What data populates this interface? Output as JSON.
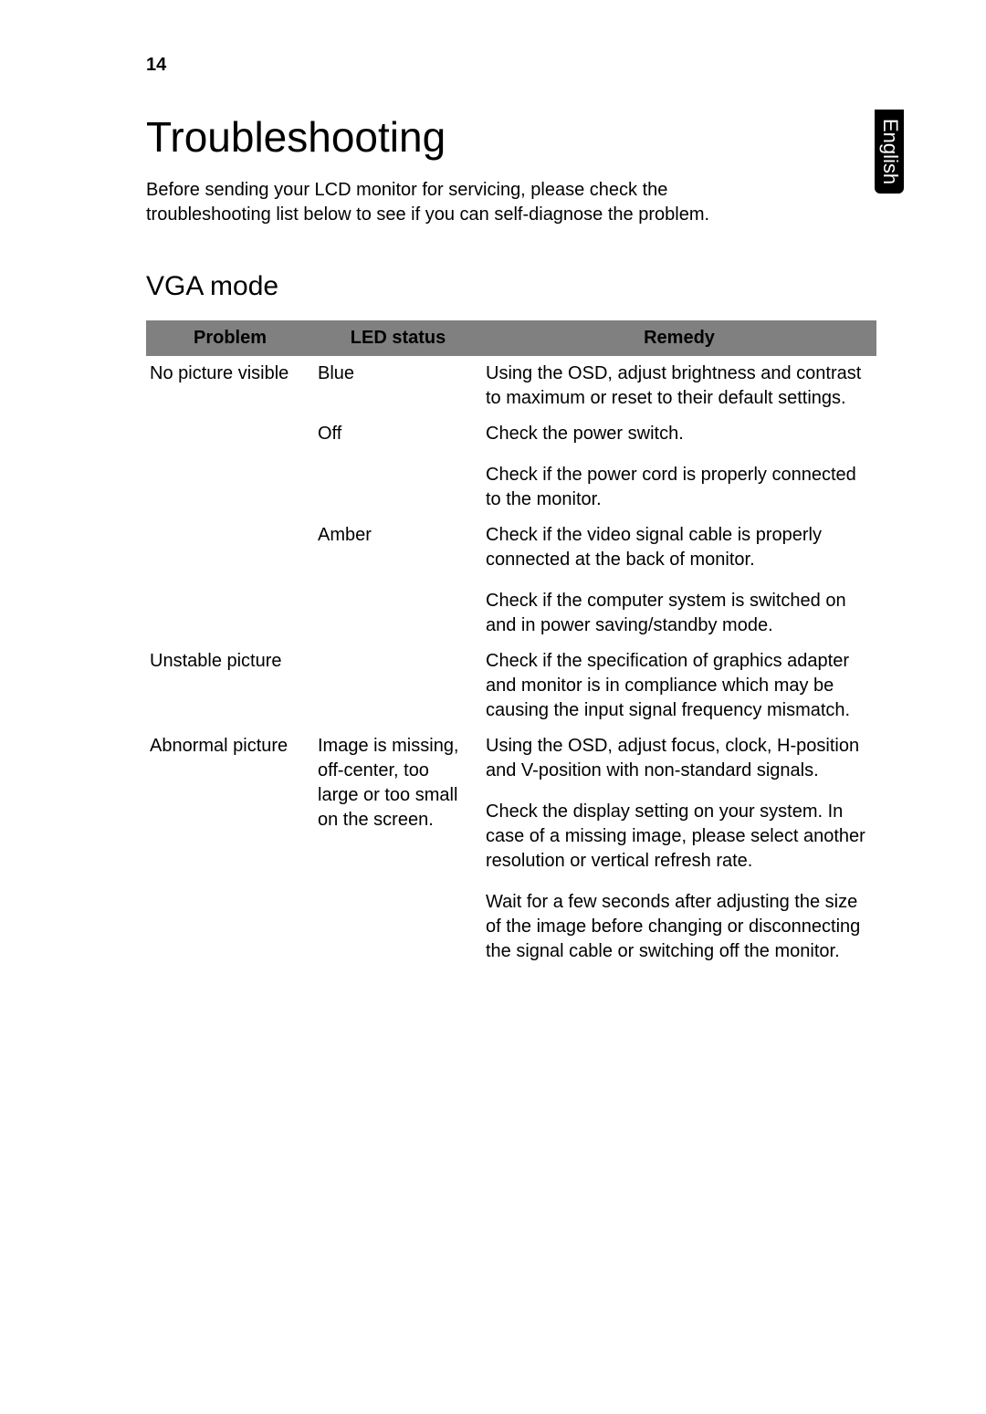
{
  "page_number": "14",
  "side_tab": "English",
  "title": "Troubleshooting",
  "intro": "Before sending your LCD monitor for servicing, please check the troubleshooting list below to see if you can self-diagnose the problem.",
  "section": "VGA mode",
  "colors": {
    "header_bg": "#808080",
    "header_text": "#000000",
    "border": "#000000",
    "page_bg": "#ffffff",
    "tab_bg": "#000000",
    "tab_text": "#ffffff"
  },
  "table": {
    "columns": [
      "Problem",
      "LED status",
      "Remedy"
    ],
    "groups": [
      {
        "problem": "No picture visible",
        "rows": [
          {
            "led": "Blue",
            "remedy": [
              "Using the OSD, adjust brightness and contrast to maximum or reset to their default settings."
            ]
          },
          {
            "led": "Off",
            "remedy": [
              "Check the power switch.",
              "Check if the power cord is properly connected to the monitor."
            ]
          },
          {
            "led": "Amber",
            "remedy": [
              "Check if the video signal cable is properly connected at the back of monitor.",
              "Check if the computer system is switched on and in power saving/standby mode."
            ]
          }
        ]
      },
      {
        "problem": "Unstable picture",
        "rows": [
          {
            "led": "",
            "remedy": [
              "Check if the specification of graphics adapter and monitor is in compliance which may be causing the input signal frequency mismatch."
            ]
          }
        ]
      },
      {
        "problem": "Abnormal picture",
        "rows": [
          {
            "led": "Image is missing, off-center, too large or too small on the screen.",
            "remedy": [
              "Using the OSD, adjust focus, clock, H-position and V-position with non-standard signals.",
              "Check the display setting on your system. In case of a missing image, please select another resolution or vertical refresh rate.",
              "Wait for a few seconds after adjusting the size of the image before changing or disconnecting the signal cable or switching off the monitor."
            ]
          }
        ]
      }
    ]
  }
}
